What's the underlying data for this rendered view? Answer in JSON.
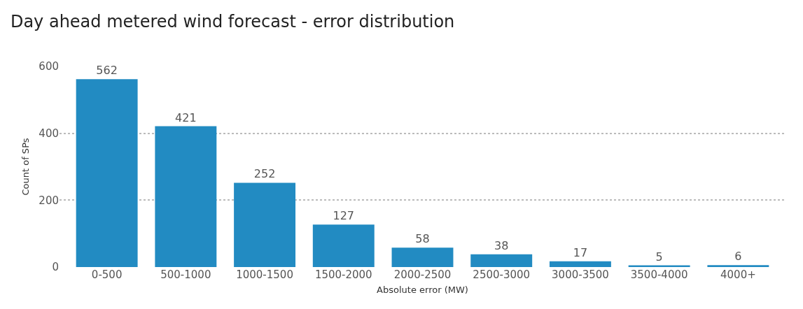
{
  "chart_data": {
    "type": "bar",
    "title": "Day ahead metered wind forecast - error distribution",
    "xlabel": "Absolute error (MW)",
    "ylabel": "Count of SPs",
    "categories": [
      "0-500",
      "500-1000",
      "1000-1500",
      "1500-2000",
      "2000-2500",
      "2500-3000",
      "3000-3500",
      "3500-4000",
      "4000+"
    ],
    "values": [
      562,
      421,
      252,
      127,
      58,
      38,
      17,
      5,
      6
    ],
    "color": "#228bc2",
    "ylim": [
      0,
      600
    ],
    "yticks": [
      0,
      200,
      400,
      600
    ],
    "grid": "y",
    "data_labels": true
  }
}
